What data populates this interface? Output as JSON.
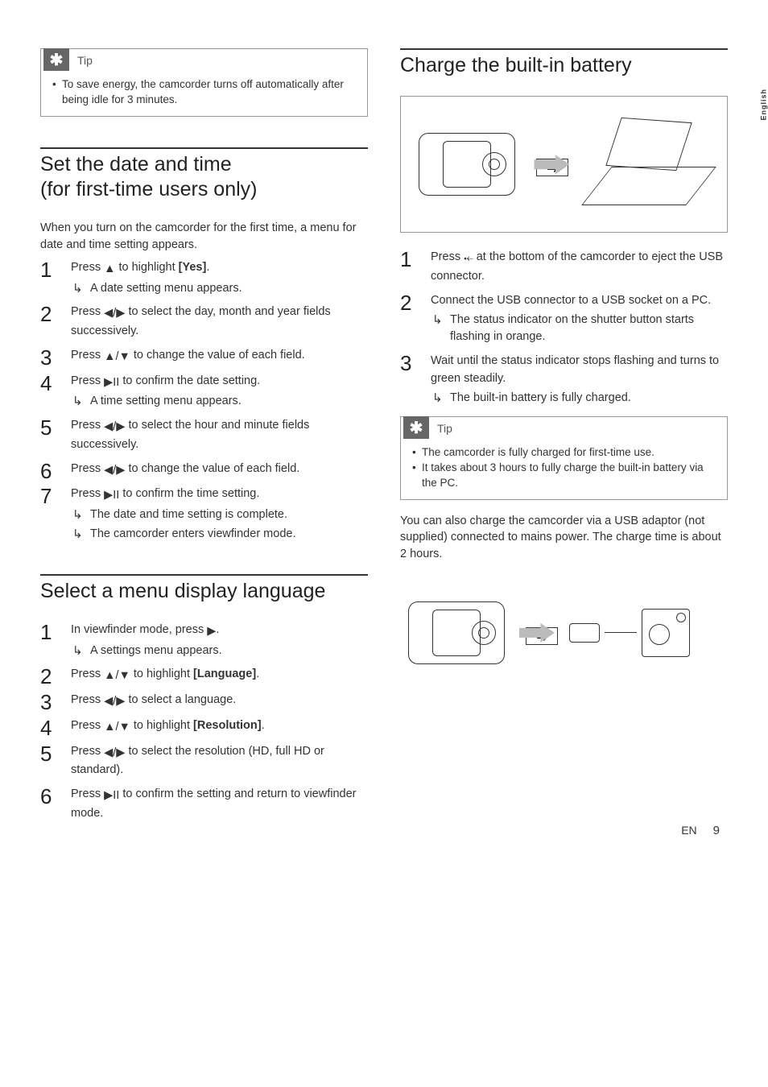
{
  "page": {
    "lang_tab": "English",
    "footer_lang": "EN",
    "page_number": "9"
  },
  "left": {
    "tip": {
      "label": "Tip",
      "items": [
        "To save energy, the camcorder turns off automatically after being idle for 3 minutes."
      ]
    },
    "section1": {
      "heading": "Set the date and time\n(for first-time users only)",
      "intro": "When you turn on the camcorder for the first time, a menu for date and time setting appears.",
      "steps": [
        {
          "pre": "Press ",
          "icon": "up",
          "post": " to highlight ",
          "bold": "[Yes]",
          "tail": ".",
          "sub": [
            "A date setting menu appears."
          ]
        },
        {
          "pre": "Press ",
          "icon": "leftright",
          "post": " to select the day, month and year fields successively."
        },
        {
          "pre": "Press ",
          "icon": "updown",
          "post": " to change the value of each field."
        },
        {
          "pre": "Press ",
          "icon": "playpause",
          "post": " to confirm the date setting.",
          "sub": [
            "A time setting menu appears."
          ]
        },
        {
          "pre": "Press ",
          "icon": "leftright",
          "post": " to select the hour and minute fields successively."
        },
        {
          "pre": "Press ",
          "icon": "leftright",
          "post": " to change the value of each field."
        },
        {
          "pre": "Press ",
          "icon": "playpause",
          "post": " to confirm the time setting.",
          "sub": [
            "The date and time setting is complete.",
            "The camcorder enters viewfinder mode."
          ]
        }
      ]
    },
    "section2": {
      "heading": "Select a menu display language",
      "steps": [
        {
          "pre": "In viewfinder mode, press ",
          "icon": "right",
          "post": ".",
          "sub": [
            "A settings menu appears."
          ]
        },
        {
          "pre": "Press ",
          "icon": "updown",
          "post": " to highlight ",
          "bold": "[Language]",
          "tail": "."
        },
        {
          "pre": "Press ",
          "icon": "leftright",
          "post": " to select a language."
        },
        {
          "pre": "Press ",
          "icon": "updown",
          "post": " to highlight ",
          "bold": "[Resolution]",
          "tail": "."
        },
        {
          "pre": "Press ",
          "icon": "leftright",
          "post": " to select the resolution (HD, full HD or standard)."
        },
        {
          "pre": "Press ",
          "icon": "playpause",
          "post": " to confirm the setting and return to viewfinder mode."
        }
      ]
    }
  },
  "right": {
    "section1": {
      "heading": "Charge the built-in battery",
      "steps": [
        {
          "pre": "Press ",
          "icon": "eject",
          "post": " at the bottom of the camcorder to eject the USB connector."
        },
        {
          "pre": "Connect the USB connector to a USB socket on a PC.",
          "sub": [
            "The status indicator on the shutter button starts flashing in orange."
          ]
        },
        {
          "pre": "Wait until the status indicator stops flashing and turns to green steadily.",
          "sub": [
            "The built-in battery is fully charged."
          ]
        }
      ]
    },
    "tip": {
      "label": "Tip",
      "items": [
        "The camcorder is fully charged for first-time use.",
        "It takes about 3 hours to fully charge the built-in battery via the PC."
      ]
    },
    "outro": "You can also charge the camcorder via a USB adaptor (not supplied) connected to mains power. The charge time is about 2 hours."
  },
  "icons": {
    "up": "▲",
    "down": "▼",
    "left": "◀",
    "right": "▶",
    "updown": "▲/▼",
    "leftright": "◀/▶",
    "playpause": "▶II",
    "eject": "⤝"
  }
}
